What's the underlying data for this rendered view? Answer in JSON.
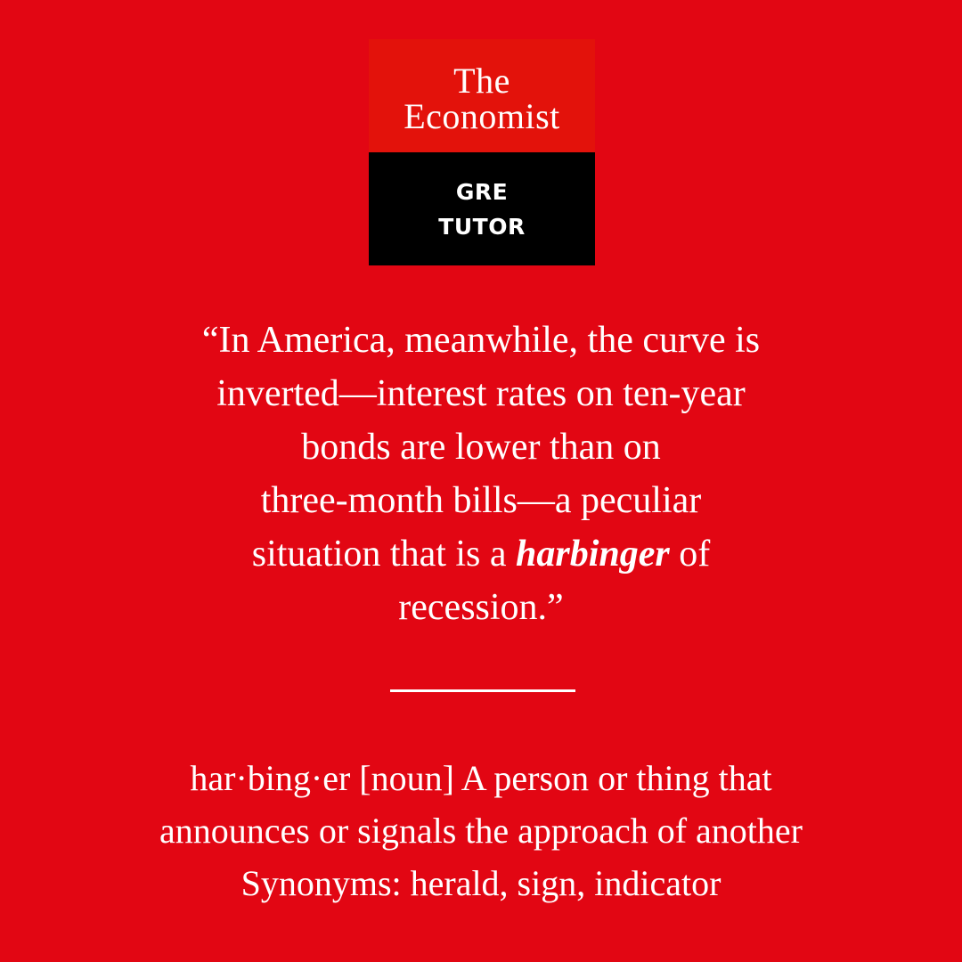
{
  "logo": {
    "brand_line1": "The",
    "brand_line2": "Economist",
    "product_line1": "GRE",
    "product_line2": "TUTOR",
    "colors": {
      "brand_red": "#e3120b",
      "product_black": "#000000"
    }
  },
  "quote": {
    "line1": "“In America, meanwhile, the curve is",
    "line2": "inverted—interest rates on ten-year",
    "line3": "bonds are lower than on",
    "line4": "three-month bills—a peculiar",
    "line5_before": "situation that is a ",
    "line5_keyword": "harbinger",
    "line5_after": " of",
    "line6": "recession.”"
  },
  "definition": {
    "line1": "har·bing·er [noun] A person or thing that",
    "line2": "announces or signals the approach of another",
    "line3": "Synonyms: herald, sign, indicator"
  },
  "colors": {
    "background": "#e20613",
    "text": "#ffffff"
  }
}
